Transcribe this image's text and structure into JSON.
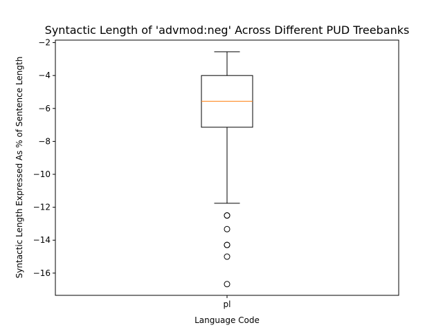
{
  "chart_data": {
    "type": "box",
    "title": "Syntactic Length of 'advmod:neg' Across Different PUD Treebanks",
    "xlabel": "Language Code",
    "ylabel": "Syntactic Length Expressed As % of Sentence Length",
    "categories": [
      "pl"
    ],
    "ylim": [
      -17.35,
      -1.85
    ],
    "yticks": [
      -2,
      -4,
      -6,
      -8,
      -10,
      -12,
      -14,
      -16
    ],
    "boxes": [
      {
        "category": "pl",
        "whisker_high": -2.56,
        "q3": -4.0,
        "median": -5.56,
        "q1": -7.14,
        "whisker_low": -11.76,
        "outliers": [
          -12.5,
          -12.5,
          -13.33,
          -14.29,
          -14.29,
          -15.0,
          -16.67
        ]
      }
    ],
    "grid": false,
    "colors": {
      "box": "#000000",
      "median": "#ff7f0e",
      "outlier": "#000000"
    }
  }
}
